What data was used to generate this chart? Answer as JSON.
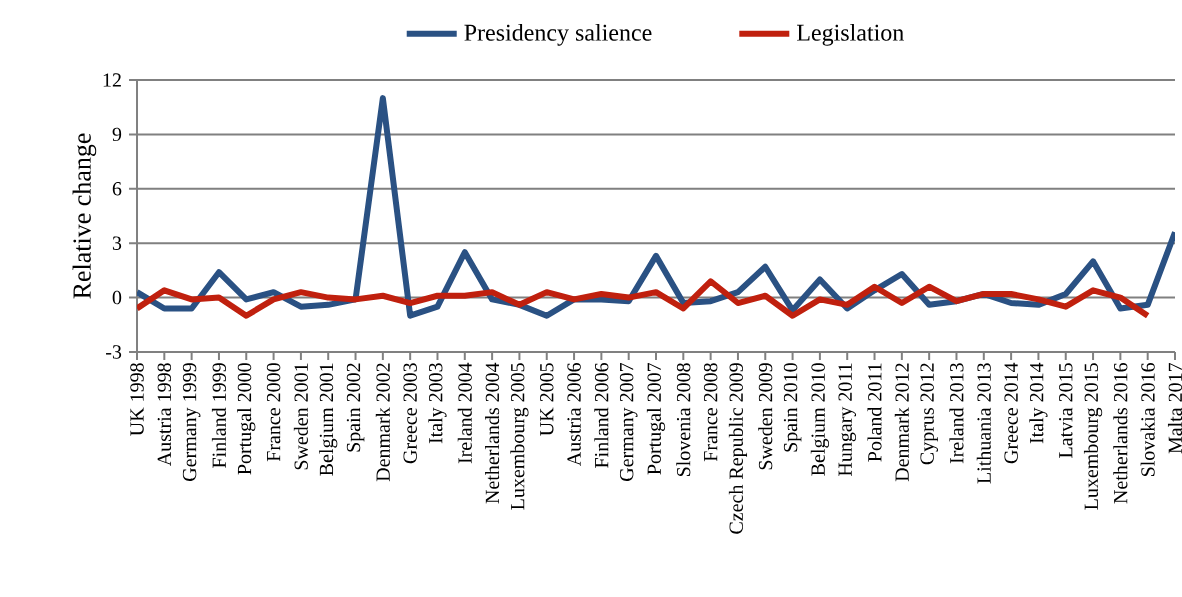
{
  "chart_data": {
    "type": "line",
    "ylabel": "Relative change",
    "categories": [
      "UK 1998",
      "Austria 1998",
      "Germany 1999",
      "Finland 1999",
      "Portugal 2000",
      "France 2000",
      "Sweden 2001",
      "Belgium 2001",
      "Spain 2002",
      "Denmark 2002",
      "Greece 2003",
      "Italy 2003",
      "Ireland 2004",
      "Netherlands 2004",
      "Luxembourg 2005",
      "UK 2005",
      "Austria 2006",
      "Finland 2006",
      "Germany 2007",
      "Portugal 2007",
      "Slovenia 2008",
      "France 2008",
      "Czech Republic 2009",
      "Sweden 2009",
      "Spain 2010",
      "Belgium 2010",
      "Hungary 2011",
      "Poland 2011",
      "Denmark 2012",
      "Cyprus 2012",
      "Ireland 2013",
      "Lithuania 2013",
      "Greece 2014",
      "Italy 2014",
      "Latvia 2015",
      "Luxembourg 2015",
      "Netherlands 2016",
      "Slovakia 2016",
      "Malta 2017"
    ],
    "series": [
      {
        "name": "Presidency salience",
        "color": "#2a5183",
        "values": [
          0.3,
          -0.6,
          -0.6,
          1.4,
          -0.1,
          0.3,
          -0.5,
          -0.4,
          -0.1,
          11,
          -1.0,
          -0.5,
          2.5,
          -0.1,
          -0.4,
          -1.0,
          -0.1,
          -0.1,
          -0.2,
          2.3,
          -0.3,
          -0.2,
          0.3,
          1.7,
          -0.7,
          1.0,
          -0.6,
          0.4,
          1.3,
          -0.4,
          -0.2,
          0.2,
          -0.3,
          -0.4,
          0.2,
          2.0,
          -0.6,
          -0.4,
          3.6
        ]
      },
      {
        "name": "Legislation",
        "color": "#c0200e",
        "values": [
          -0.6,
          0.4,
          -0.1,
          0.0,
          -1.0,
          -0.1,
          0.3,
          0.0,
          -0.1,
          0.1,
          -0.3,
          0.1,
          0.1,
          0.3,
          -0.4,
          0.3,
          -0.1,
          0.2,
          0.0,
          0.3,
          -0.6,
          0.9,
          -0.3,
          0.1,
          -1.0,
          -0.1,
          -0.4,
          0.6,
          -0.3,
          0.6,
          -0.2,
          0.2,
          0.2,
          -0.1,
          -0.5,
          0.4,
          0.0,
          -1.0,
          null
        ]
      }
    ],
    "ylim": [
      -3,
      12
    ],
    "yticks": [
      -3,
      0,
      3,
      6,
      9,
      12
    ],
    "grid": "y",
    "legend": "top",
    "marker": "none",
    "line_style": "solid"
  }
}
